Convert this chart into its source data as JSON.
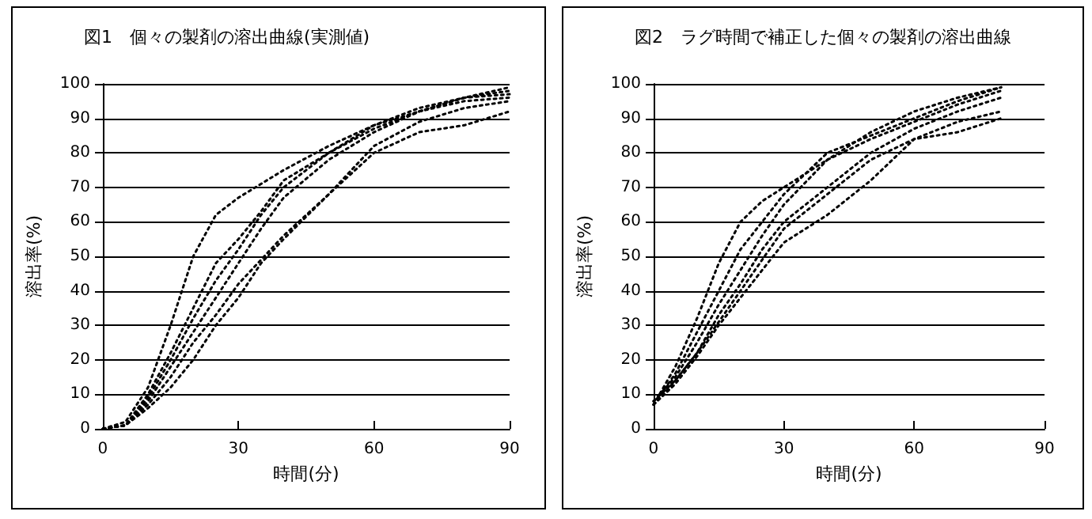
{
  "chart_data": [
    {
      "type": "line",
      "title": "図1　個々の製剤の溶出曲線(実測値)",
      "xlabel": "時間(分)",
      "ylabel": "溶出率(%)",
      "xlim": [
        0,
        90
      ],
      "xticks": [
        0,
        30,
        60,
        90
      ],
      "ylim": [
        0,
        100
      ],
      "yticks": [
        0,
        10,
        20,
        30,
        40,
        50,
        60,
        70,
        80,
        90,
        100
      ],
      "grid": "y",
      "marker": "none",
      "line_style": "dotted",
      "x": [
        0,
        5,
        10,
        15,
        20,
        25,
        30,
        35,
        40,
        50,
        60,
        70,
        80,
        90
      ],
      "series": [
        {
          "color": "#000000",
          "values": [
            0,
            2,
            12,
            30,
            50,
            62,
            67,
            71,
            75,
            82,
            88,
            92,
            96,
            98
          ]
        },
        {
          "color": "#000000",
          "values": [
            0,
            1,
            10,
            22,
            35,
            48,
            55,
            63,
            72,
            80,
            87,
            92,
            96,
            99
          ]
        },
        {
          "color": "#000000",
          "values": [
            0,
            1,
            9,
            20,
            32,
            43,
            52,
            62,
            70,
            80,
            88,
            93,
            96,
            97
          ]
        },
        {
          "color": "#000000",
          "values": [
            0,
            1,
            8,
            18,
            28,
            38,
            48,
            58,
            67,
            78,
            86,
            92,
            95,
            96
          ]
        },
        {
          "color": "#000000",
          "values": [
            0,
            1,
            7,
            15,
            25,
            33,
            42,
            49,
            56,
            68,
            80,
            86,
            88,
            92
          ]
        },
        {
          "color": "#000000",
          "values": [
            0,
            1,
            6,
            12,
            20,
            30,
            38,
            48,
            55,
            68,
            82,
            89,
            93,
            95
          ]
        }
      ]
    },
    {
      "type": "line",
      "title": "図2　ラグ時間で補正した個々の製剤の溶出曲線",
      "xlabel": "時間(分)",
      "ylabel": "溶出率(%)",
      "xlim": [
        0,
        90
      ],
      "xticks": [
        0,
        30,
        60,
        90
      ],
      "ylim": [
        0,
        100
      ],
      "yticks": [
        0,
        10,
        20,
        30,
        40,
        50,
        60,
        70,
        80,
        90,
        100
      ],
      "grid": "y",
      "marker": "none",
      "line_style": "dotted",
      "x": [
        0,
        5,
        10,
        15,
        20,
        25,
        30,
        40,
        50,
        60,
        70,
        80
      ],
      "series": [
        {
          "color": "#000000",
          "values": [
            7,
            18,
            32,
            48,
            60,
            66,
            70,
            78,
            84,
            89,
            94,
            98
          ]
        },
        {
          "color": "#000000",
          "values": [
            7,
            16,
            28,
            40,
            52,
            60,
            68,
            80,
            85,
            90,
            95,
            99
          ]
        },
        {
          "color": "#000000",
          "values": [
            8,
            15,
            25,
            36,
            46,
            56,
            65,
            78,
            86,
            92,
            96,
            99
          ]
        },
        {
          "color": "#000000",
          "values": [
            7,
            14,
            22,
            33,
            42,
            52,
            60,
            70,
            80,
            87,
            92,
            96
          ]
        },
        {
          "color": "#000000",
          "values": [
            7,
            13,
            21,
            30,
            38,
            46,
            54,
            62,
            72,
            84,
            89,
            92
          ]
        },
        {
          "color": "#000000",
          "values": [
            8,
            14,
            22,
            31,
            40,
            49,
            58,
            68,
            78,
            84,
            86,
            90
          ]
        }
      ]
    }
  ]
}
